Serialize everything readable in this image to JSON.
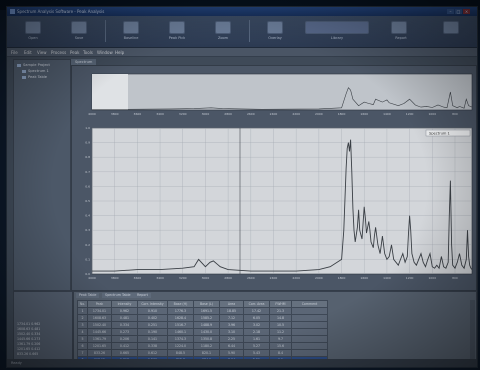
{
  "window": {
    "title": "Spectrum Analysis Software - Peak Analysis"
  },
  "ribbon": {
    "buttons": [
      {
        "label": "Open"
      },
      {
        "label": "Save"
      },
      {
        "label": "Baseline"
      },
      {
        "label": "Peak Pick"
      },
      {
        "label": "Zoom"
      },
      {
        "label": "Overlay"
      },
      {
        "label": "Library"
      },
      {
        "label": "Report"
      }
    ]
  },
  "menu": {
    "items": [
      "File",
      "Edit",
      "View",
      "Process",
      "Peak",
      "Tools",
      "Window",
      "Help"
    ]
  },
  "sidebar": {
    "items": [
      {
        "label": "Sample Project"
      },
      {
        "label": "Spectrum 1"
      },
      {
        "label": "Peak Table"
      }
    ]
  },
  "plot": {
    "tab_label": "Spectrum",
    "legend_label": "Spectrum 1"
  },
  "colors": {
    "accent": "#2c4c86",
    "trace": "#3a3f45",
    "plot_bg": "#d3d6da"
  },
  "chart_data": [
    {
      "type": "line",
      "role": "overview",
      "x": [
        4000,
        3700,
        3300,
        3100,
        2950,
        2850,
        2500,
        2000,
        1800,
        1760,
        1740,
        1720,
        1700,
        1650,
        1600,
        1560,
        1520,
        1500,
        1470,
        1440,
        1400,
        1380,
        1300,
        1250,
        1200,
        1150,
        1120,
        1100,
        1050,
        1000,
        950,
        900,
        870,
        840,
        820,
        780,
        760,
        720,
        700,
        680,
        650
      ],
      "values": [
        0.02,
        0.02,
        0.03,
        0.04,
        0.06,
        0.04,
        0.02,
        0.03,
        0.06,
        0.45,
        0.62,
        0.55,
        0.3,
        0.12,
        0.22,
        0.18,
        0.15,
        0.3,
        0.26,
        0.22,
        0.28,
        0.2,
        0.12,
        0.18,
        0.3,
        0.14,
        0.1,
        0.08,
        0.1,
        0.07,
        0.14,
        0.08,
        0.06,
        0.5,
        0.12,
        0.06,
        0.1,
        0.05,
        0.3,
        0.12,
        0.08
      ],
      "xlim": [
        4000,
        650
      ],
      "ylim": [
        0,
        1
      ]
    },
    {
      "type": "line",
      "role": "main",
      "x": [
        4000,
        3800,
        3600,
        3400,
        3200,
        3100,
        3060,
        3000,
        2960,
        2930,
        2900,
        2870,
        2800,
        2600,
        2400,
        2200,
        2000,
        1900,
        1800,
        1780,
        1760,
        1750,
        1740,
        1730,
        1720,
        1710,
        1700,
        1690,
        1680,
        1660,
        1650,
        1640,
        1620,
        1600,
        1590,
        1580,
        1560,
        1550,
        1540,
        1520,
        1510,
        1500,
        1480,
        1460,
        1450,
        1440,
        1420,
        1400,
        1380,
        1360,
        1340,
        1300,
        1280,
        1260,
        1240,
        1220,
        1210,
        1200,
        1190,
        1180,
        1160,
        1140,
        1120,
        1100,
        1080,
        1060,
        1040,
        1020,
        1000,
        980,
        960,
        940,
        920,
        900,
        880,
        860,
        850,
        840,
        830,
        820,
        800,
        780,
        760,
        740,
        720,
        700,
        690,
        680,
        670,
        660,
        650
      ],
      "values": [
        0.02,
        0.02,
        0.03,
        0.03,
        0.04,
        0.05,
        0.1,
        0.05,
        0.08,
        0.09,
        0.07,
        0.05,
        0.03,
        0.02,
        0.02,
        0.02,
        0.03,
        0.05,
        0.1,
        0.3,
        0.72,
        0.86,
        0.9,
        0.84,
        0.92,
        0.7,
        0.45,
        0.3,
        0.22,
        0.32,
        0.44,
        0.3,
        0.24,
        0.46,
        0.38,
        0.28,
        0.36,
        0.3,
        0.22,
        0.18,
        0.26,
        0.32,
        0.2,
        0.14,
        0.2,
        0.26,
        0.14,
        0.1,
        0.12,
        0.2,
        0.1,
        0.06,
        0.1,
        0.14,
        0.08,
        0.12,
        0.28,
        0.4,
        0.3,
        0.14,
        0.08,
        0.06,
        0.1,
        0.14,
        0.08,
        0.05,
        0.1,
        0.14,
        0.05,
        0.04,
        0.06,
        0.04,
        0.12,
        0.05,
        0.04,
        0.08,
        0.4,
        0.64,
        0.2,
        0.06,
        0.04,
        0.08,
        0.14,
        0.06,
        0.04,
        0.1,
        0.3,
        0.12,
        0.06,
        0.04,
        0.03
      ],
      "xlim": [
        4000,
        650
      ],
      "ylim": [
        0,
        1
      ],
      "grid": true
    }
  ],
  "peak_table": {
    "tabs": [
      "Peak Table",
      "Spectrum Table",
      "Report"
    ],
    "columns": [
      "No.",
      "Peak",
      "Intensity",
      "Corr. Intensity",
      "Base (H)",
      "Base (L)",
      "Area",
      "Corr. Area",
      "FWHM",
      "Comment"
    ],
    "rows": [
      [
        "1",
        "1734.01",
        "0.962",
        "0.910",
        "1776.3",
        "1691.5",
        "18.85",
        "17.42",
        "21.3",
        ""
      ],
      [
        "2",
        "1608.63",
        "0.481",
        "0.402",
        "1628.4",
        "1585.2",
        "7.12",
        "6.05",
        "14.8",
        ""
      ],
      [
        "3",
        "1502.40",
        "0.334",
        "0.251",
        "1516.7",
        "1488.9",
        "3.96",
        "3.02",
        "10.5",
        ""
      ],
      [
        "4",
        "1445.66",
        "0.273",
        "0.190",
        "1460.1",
        "1430.0",
        "3.10",
        "2.18",
        "11.2",
        ""
      ],
      [
        "5",
        "1361.79",
        "0.206",
        "0.141",
        "1374.3",
        "1350.8",
        "2.25",
        "1.61",
        "9.7",
        ""
      ],
      [
        "6",
        "1201.65",
        "0.412",
        "0.338",
        "1224.0",
        "1180.2",
        "6.44",
        "5.27",
        "15.6",
        ""
      ],
      [
        "7",
        "833.26",
        "0.665",
        "0.612",
        "848.5",
        "820.1",
        "5.90",
        "5.43",
        "8.4",
        ""
      ],
      [
        "8",
        "698.15",
        "0.318",
        "0.260",
        "712.3",
        "684.9",
        "3.04",
        "2.51",
        "9.1",
        ""
      ]
    ]
  },
  "bottom_left": {
    "lines": [
      "1734.01  0.962",
      "1608.63  0.481",
      "1502.40  0.334",
      "1445.66  0.273",
      "1361.79  0.206",
      "1201.65  0.412",
      "833.26  0.665"
    ]
  },
  "status": {
    "text": "Ready"
  }
}
